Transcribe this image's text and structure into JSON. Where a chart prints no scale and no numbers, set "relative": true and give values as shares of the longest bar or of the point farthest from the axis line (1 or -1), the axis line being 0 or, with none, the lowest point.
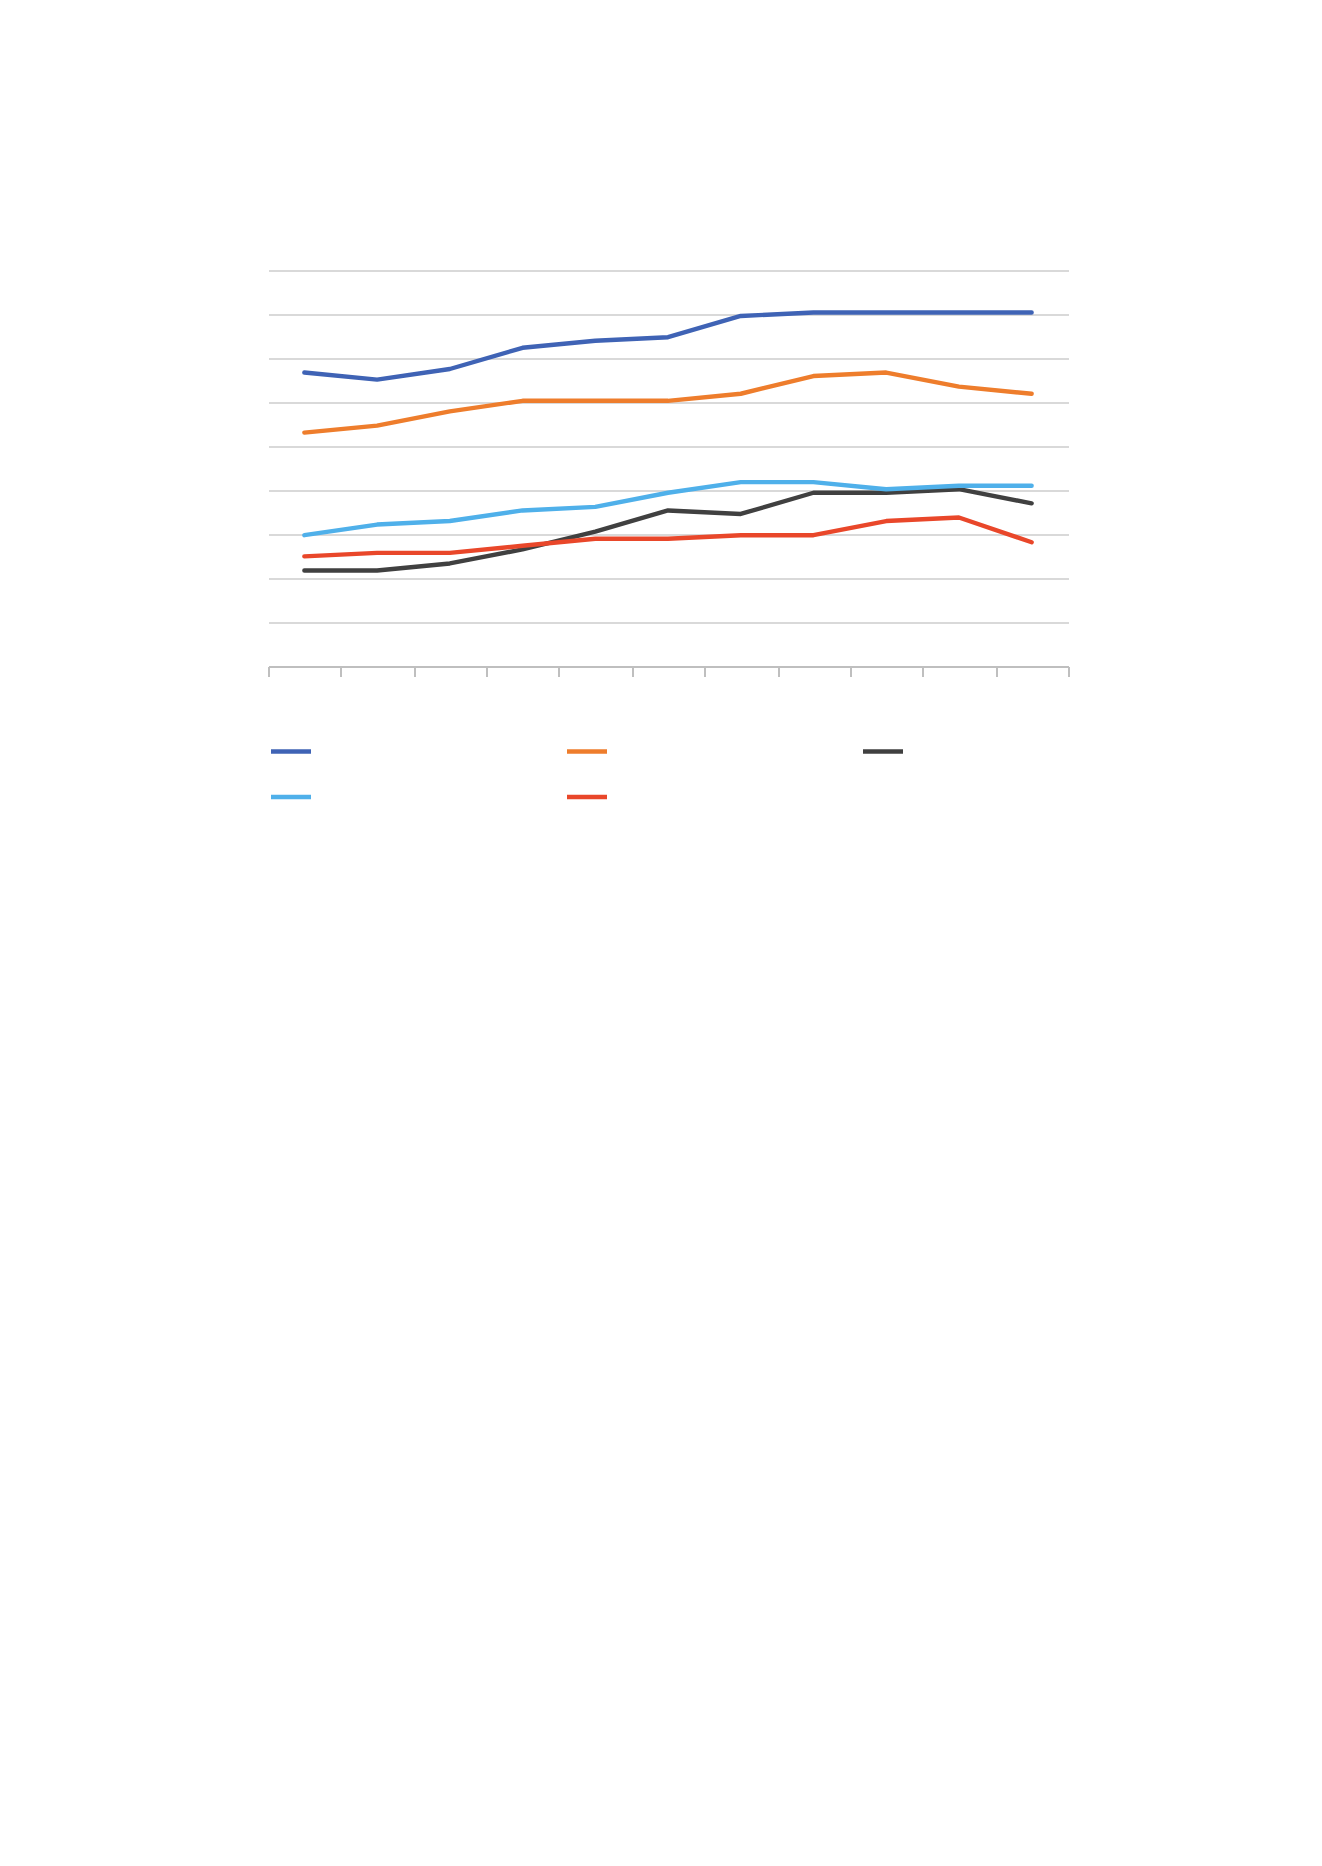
{
  "chart_data": {
    "type": "line",
    "relative": true,
    "grid": "y",
    "marker": "none",
    "line_style": "solid",
    "categories": [
      null,
      null,
      null,
      null,
      null,
      null,
      null,
      null,
      null,
      null,
      null
    ],
    "series": [
      {
        "color": "#3f63b5",
        "values": [
          0.83,
          0.81,
          0.84,
          0.9,
          0.92,
          0.93,
          0.99,
          1,
          1,
          1,
          1
        ]
      },
      {
        "color": "#ee7d2c",
        "values": [
          0.66,
          0.68,
          0.72,
          0.75,
          0.75,
          0.75,
          0.77,
          0.82,
          0.83,
          0.79,
          0.77
        ]
      },
      {
        "color": "#404040",
        "values": [
          0.27,
          0.27,
          0.29,
          0.33,
          0.38,
          0.44,
          0.43,
          0.49,
          0.49,
          0.5,
          0.46
        ]
      },
      {
        "color": "#4fb0ea",
        "values": [
          0.37,
          0.4,
          0.41,
          0.44,
          0.45,
          0.49,
          0.52,
          0.52,
          0.5,
          0.51,
          0.51
        ]
      },
      {
        "color": "#e9472a",
        "values": [
          0.31,
          0.32,
          0.32,
          0.34,
          0.36,
          0.36,
          0.37,
          0.37,
          0.41,
          0.42,
          0.35
        ]
      }
    ]
  }
}
